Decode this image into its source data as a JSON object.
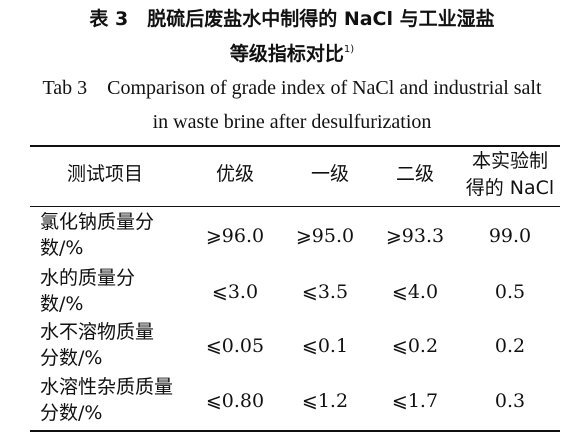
{
  "caption": {
    "cn_line1": "表 3　脱硫后废盐水中制得的 NaCl 与工业湿盐",
    "cn_line2": "等级指标对比",
    "cn_note": "1)",
    "en_line1": "Tab 3　Comparison of grade index of NaCl and industrial salt",
    "en_line2": "in waste brine after desulfurization"
  },
  "table": {
    "headers": [
      "测试项目",
      "优级",
      "一级",
      "二级",
      "本实验制",
      "得的 NaCl"
    ],
    "rows": [
      {
        "item_l1": "氯化钠质量分",
        "item_l2": "数/%",
        "superior": "⩾96.0",
        "first": "⩾95.0",
        "second": "⩾93.3",
        "this": "99.0"
      },
      {
        "item_l1": "水的质量分",
        "item_l2": "数/%",
        "superior": "⩽3.0",
        "first": "⩽3.5",
        "second": "⩽4.0",
        "this": "0.5"
      },
      {
        "item_l1": "水不溶物质量",
        "item_l2": "分数/%",
        "superior": "⩽0.05",
        "first": "⩽0.1",
        "second": "⩽0.2",
        "this": "0.2"
      },
      {
        "item_l1": "水溶性杂质质量",
        "item_l2": "分数/%",
        "superior": "⩽0.80",
        "first": "⩽1.2",
        "second": "⩽1.7",
        "this": "0.3"
      }
    ]
  }
}
